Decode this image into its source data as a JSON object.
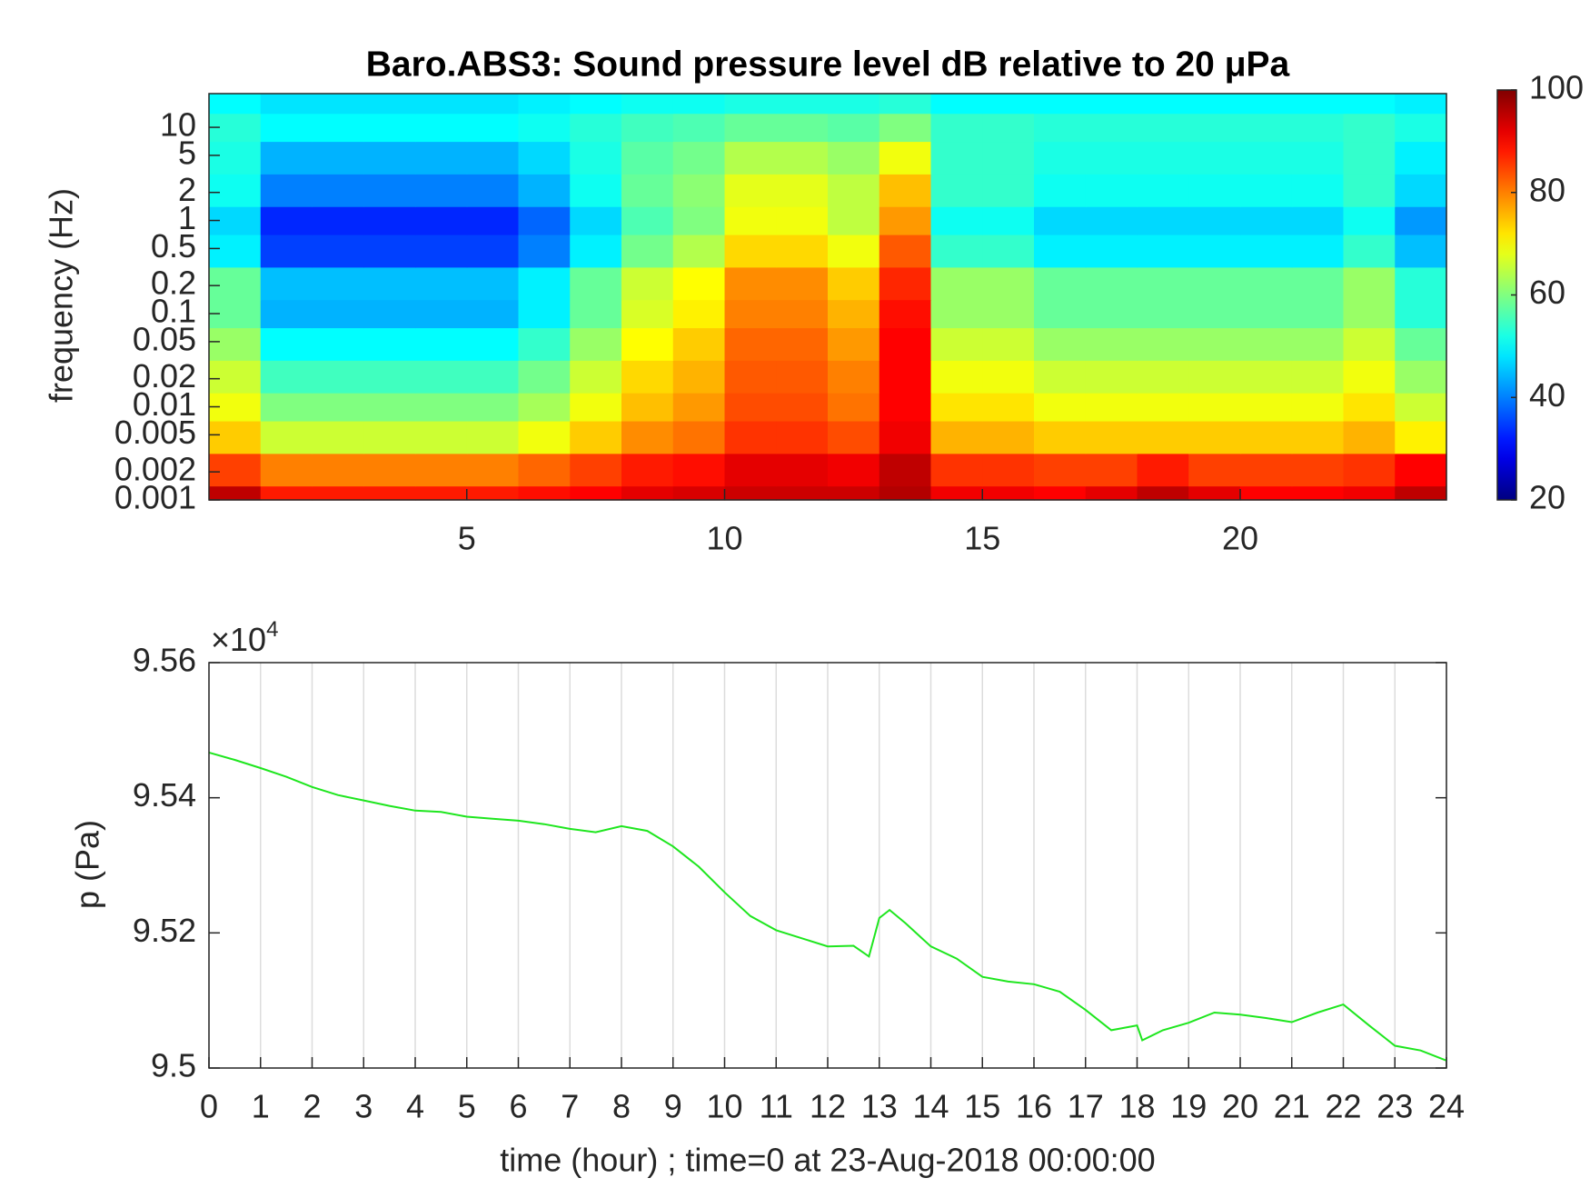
{
  "chart_data": [
    {
      "type": "heatmap",
      "title": "Baro.ABS3: Sound pressure level dB relative to 20 μPa",
      "ylabel": "frequency (Hz)",
      "xlim": [
        0,
        24
      ],
      "xticks": [
        5,
        10,
        15,
        20
      ],
      "ylim": [
        0.001,
        23
      ],
      "ylog": true,
      "yticks": [
        0.001,
        0.002,
        0.005,
        0.01,
        0.02,
        0.05,
        0.1,
        0.2,
        0.5,
        1,
        2,
        5,
        10
      ],
      "colormap": "jet",
      "clim": [
        20,
        100
      ],
      "cticks": [
        20,
        40,
        60,
        80,
        100
      ],
      "x": [
        0.5,
        1.5,
        2.5,
        3.5,
        4.5,
        5.5,
        6.5,
        7.5,
        8.5,
        9.5,
        10.5,
        11.5,
        12.5,
        13.5,
        14.5,
        15.5,
        16.5,
        17.5,
        18.5,
        19.5,
        20.5,
        21.5,
        22.5,
        23.5
      ],
      "y": [
        0.001,
        0.002,
        0.005,
        0.01,
        0.02,
        0.05,
        0.1,
        0.2,
        0.5,
        1,
        2,
        5,
        10,
        20
      ],
      "z": [
        [
          95,
          88,
          88,
          88,
          88,
          88,
          89,
          90,
          92,
          93,
          94,
          94,
          94,
          96,
          91,
          91,
          90,
          92,
          95,
          92,
          90,
          90,
          91,
          95
        ],
        [
          85,
          80,
          80,
          80,
          80,
          80,
          82,
          85,
          88,
          89,
          92,
          92,
          91,
          95,
          86,
          86,
          85,
          85,
          88,
          85,
          85,
          85,
          86,
          90
        ],
        [
          74,
          66,
          66,
          66,
          66,
          66,
          69,
          74,
          79,
          81,
          86,
          86,
          84,
          91,
          76,
          76,
          74,
          74,
          74,
          74,
          74,
          74,
          76,
          71
        ],
        [
          69,
          60,
          60,
          60,
          60,
          60,
          63,
          69,
          75,
          78,
          84,
          84,
          81,
          90,
          72,
          72,
          69,
          69,
          69,
          69,
          69,
          69,
          72,
          66
        ],
        [
          66,
          55,
          55,
          55,
          55,
          55,
          59,
          66,
          73,
          76,
          83,
          83,
          80,
          90,
          69,
          69,
          66,
          66,
          66,
          66,
          66,
          66,
          69,
          62
        ],
        [
          62,
          50,
          50,
          50,
          50,
          50,
          54,
          62,
          70,
          74,
          82,
          82,
          78,
          90,
          66,
          66,
          62,
          62,
          62,
          62,
          62,
          62,
          66,
          58
        ],
        [
          58,
          44,
          44,
          44,
          44,
          44,
          49,
          58,
          67,
          71,
          80,
          80,
          76,
          89,
          62,
          62,
          58,
          58,
          58,
          58,
          58,
          58,
          62,
          53
        ],
        [
          58,
          45,
          45,
          45,
          45,
          45,
          49,
          58,
          66,
          70,
          79,
          79,
          74,
          87,
          62,
          62,
          58,
          58,
          58,
          58,
          58,
          58,
          62,
          53
        ],
        [
          49,
          35,
          35,
          35,
          35,
          35,
          40,
          49,
          59,
          64,
          73,
          73,
          69,
          83,
          54,
          54,
          49,
          49,
          49,
          49,
          49,
          49,
          54,
          45
        ],
        [
          47,
          33,
          33,
          33,
          33,
          33,
          38,
          47,
          56,
          60,
          69,
          69,
          65,
          78,
          51,
          51,
          47,
          47,
          47,
          47,
          47,
          47,
          51,
          42
        ],
        [
          51,
          40,
          40,
          40,
          40,
          40,
          44,
          51,
          58,
          61,
          68,
          68,
          65,
          75,
          54,
          54,
          51,
          51,
          51,
          51,
          51,
          51,
          54,
          47
        ],
        [
          52,
          44,
          44,
          44,
          44,
          44,
          47,
          52,
          57,
          59,
          64,
          64,
          62,
          69,
          54,
          54,
          52,
          52,
          52,
          52,
          52,
          52,
          54,
          49
        ],
        [
          53,
          50,
          50,
          50,
          50,
          50,
          51,
          53,
          55,
          56,
          58,
          58,
          57,
          60,
          54,
          54,
          53,
          53,
          53,
          53,
          53,
          53,
          54,
          52
        ],
        [
          50,
          48,
          48,
          48,
          48,
          48,
          49,
          50,
          51,
          51,
          52,
          52,
          52,
          53,
          50,
          50,
          50,
          50,
          50,
          50,
          50,
          50,
          50,
          49
        ]
      ]
    },
    {
      "type": "line",
      "xlabel": "time (hour) ; time=0 at 23-Aug-2018 00:00:00",
      "ylabel": "p (Pa)",
      "y_multiplier": {
        "base": "×10",
        "exponent": "4"
      },
      "xlim": [
        0,
        24
      ],
      "xticks": [
        0,
        1,
        2,
        3,
        4,
        5,
        6,
        7,
        8,
        9,
        10,
        11,
        12,
        13,
        14,
        15,
        16,
        17,
        18,
        19,
        20,
        21,
        22,
        23,
        24
      ],
      "ylim": [
        95000,
        95600
      ],
      "yticks": [
        {
          "value": 95000,
          "label": "9.5"
        },
        {
          "value": 95200,
          "label": "9.52"
        },
        {
          "value": 95400,
          "label": "9.54"
        },
        {
          "value": 95600,
          "label": "9.56"
        }
      ],
      "xgrid": true,
      "color": "#1ee61e",
      "x": [
        0,
        0.5,
        1,
        1.5,
        2,
        2.5,
        3,
        3.5,
        4,
        4.5,
        5,
        5.5,
        6,
        6.5,
        7,
        7.5,
        8,
        8.5,
        9,
        9.5,
        10,
        10.5,
        11,
        11.5,
        12,
        12.5,
        12.8,
        13,
        13.2,
        13.5,
        14,
        14.5,
        15,
        15.5,
        16,
        16.5,
        17,
        17.5,
        18,
        18.1,
        18.5,
        19,
        19.5,
        20,
        20.5,
        21,
        21.5,
        22,
        22.5,
        23,
        23.5,
        24
      ],
      "values": [
        95467,
        95456,
        95444,
        95431,
        95416,
        95404,
        95396,
        95388,
        95381,
        95379,
        95372,
        95369,
        95366,
        95361,
        95354,
        95349,
        95358,
        95351,
        95328,
        95298,
        95260,
        95225,
        95204,
        95192,
        95180,
        95181,
        95165,
        95222,
        95234,
        95215,
        95180,
        95162,
        95135,
        95128,
        95124,
        95113,
        95086,
        95056,
        95063,
        95041,
        95056,
        95067,
        95082,
        95079,
        95074,
        95068,
        95082,
        95094,
        95063,
        95033,
        95026,
        95011
      ]
    }
  ]
}
